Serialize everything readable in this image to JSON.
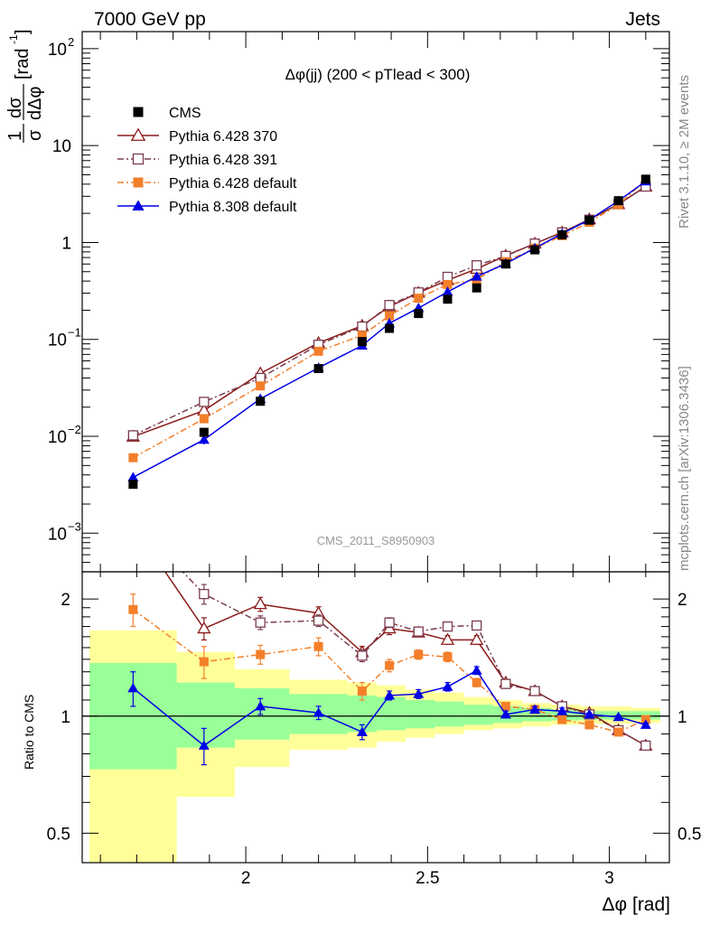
{
  "chart_data": {
    "type": "line",
    "header_left": "7000 GeV pp",
    "header_right": "Jets",
    "title": "Δφ(jj) (200 < pTlead <  300)",
    "watermark": "CMS_2011_S8950903",
    "side_text_top": "Rivet 3.1.10, ≥ 2M events",
    "side_text_bottom": "mcplots.cern.ch [arXiv:1306.3436]",
    "xlabel": "Δφ [rad]",
    "ylabel": "1/σ dσ/dΔφ [rad⁻¹]",
    "ylabel_parts": {
      "num": "1",
      "den": "σ",
      "dnum": "dσ",
      "dden": "dΔφ",
      "unit": "[rad",
      "unit_exp": "-1",
      "unit_close": "]"
    },
    "ratio_ylabel": "Ratio to CMS",
    "xlim": [
      1.55,
      3.165
    ],
    "ylim_main": [
      0.0004,
      150
    ],
    "ylim_ratio": [
      0.42,
      2.35
    ],
    "y_log": true,
    "x_ticks": [
      {
        "value": 2,
        "label": "2"
      },
      {
        "value": 2.5,
        "label": "2.5"
      },
      {
        "value": 3,
        "label": "3"
      }
    ],
    "main_ticks": [
      {
        "value": 0.001,
        "base": "10",
        "exp": "−3"
      },
      {
        "value": 0.01,
        "base": "10",
        "exp": "−2"
      },
      {
        "value": 0.1,
        "base": "10",
        "exp": "−1"
      },
      {
        "value": 1,
        "base": "1",
        "exp": ""
      },
      {
        "value": 10,
        "base": "10",
        "exp": ""
      },
      {
        "value": 100,
        "base": "10",
        "exp": "2"
      }
    ],
    "ratio_ticks": [
      {
        "value": 0.5,
        "label": "0.5"
      },
      {
        "value": 1,
        "label": "1"
      },
      {
        "value": 2,
        "label": "2"
      }
    ],
    "x": [
      1.69,
      1.885,
      2.04,
      2.2,
      2.32,
      2.395,
      2.475,
      2.555,
      2.635,
      2.715,
      2.795,
      2.87,
      2.945,
      3.025,
      3.1
    ],
    "cms": [
      0.0032,
      0.011,
      0.023,
      0.05,
      0.095,
      0.13,
      0.185,
      0.26,
      0.34,
      0.6,
      0.84,
      1.2,
      1.7,
      2.7,
      4.5
    ],
    "bands": [
      {
        "x0": 1.57,
        "x1": 1.81,
        "green": [
          0.73,
          1.37
        ],
        "yellow": [
          0.42,
          1.66
        ]
      },
      {
        "x0": 1.81,
        "x1": 1.97,
        "green": [
          0.83,
          1.22
        ],
        "yellow": [
          0.62,
          1.46
        ]
      },
      {
        "x0": 1.97,
        "x1": 2.12,
        "green": [
          0.87,
          1.18
        ],
        "yellow": [
          0.74,
          1.32
        ]
      },
      {
        "x0": 2.12,
        "x1": 2.28,
        "green": [
          0.9,
          1.14
        ],
        "yellow": [
          0.82,
          1.24
        ]
      },
      {
        "x0": 2.28,
        "x1": 2.36,
        "green": [
          0.91,
          1.13
        ],
        "yellow": [
          0.83,
          1.22
        ]
      },
      {
        "x0": 2.36,
        "x1": 2.44,
        "green": [
          0.92,
          1.12
        ],
        "yellow": [
          0.86,
          1.2
        ]
      },
      {
        "x0": 2.44,
        "x1": 2.52,
        "green": [
          0.93,
          1.1
        ],
        "yellow": [
          0.88,
          1.17
        ]
      },
      {
        "x0": 2.52,
        "x1": 2.6,
        "green": [
          0.94,
          1.09
        ],
        "yellow": [
          0.9,
          1.15
        ]
      },
      {
        "x0": 2.6,
        "x1": 2.68,
        "green": [
          0.95,
          1.07
        ],
        "yellow": [
          0.92,
          1.12
        ]
      },
      {
        "x0": 2.68,
        "x1": 2.76,
        "green": [
          0.96,
          1.06
        ],
        "yellow": [
          0.93,
          1.1
        ]
      },
      {
        "x0": 2.76,
        "x1": 2.84,
        "green": [
          0.97,
          1.05
        ],
        "yellow": [
          0.94,
          1.08
        ]
      },
      {
        "x0": 2.84,
        "x1": 2.92,
        "green": [
          0.975,
          1.04
        ],
        "yellow": [
          0.95,
          1.07
        ]
      },
      {
        "x0": 2.92,
        "x1": 3.06,
        "green": [
          0.98,
          1.03
        ],
        "yellow": [
          0.955,
          1.06
        ]
      },
      {
        "x0": 3.06,
        "x1": 3.14,
        "green": [
          0.98,
          1.03
        ],
        "yellow": [
          0.96,
          1.05
        ]
      }
    ],
    "series": [
      {
        "name": "Pythia 6.428 370",
        "color": "#8b1a1a",
        "marker": "triangle-open",
        "dash": "",
        "ratio": [
          3.1,
          1.68,
          1.94,
          1.84,
          1.46,
          1.68,
          1.64,
          1.57,
          1.57,
          1.22,
          1.16,
          1.06,
          1.02,
          0.92,
          0.84
        ],
        "err": [
          0,
          0.11,
          0.08,
          0.07,
          0.05,
          0.06,
          0.04,
          0.04,
          0.04,
          0.02,
          0.02,
          0.02,
          0.01,
          0.01,
          0.01
        ]
      },
      {
        "name": "Pythia 6.428 391",
        "color": "#7a3c4e",
        "marker": "square-open",
        "dash": "7,3,2,3",
        "ratio": [
          3.2,
          2.06,
          1.74,
          1.76,
          1.43,
          1.74,
          1.65,
          1.7,
          1.71,
          1.21,
          1.16,
          1.06,
          1.01,
          0.92,
          0.84
        ],
        "err": [
          0,
          0.12,
          0.07,
          0.06,
          0.05,
          0.05,
          0.04,
          0.04,
          0.04,
          0.02,
          0.02,
          0.02,
          0.01,
          0.01,
          0.01
        ]
      },
      {
        "name": "Pythia 6.428 default",
        "color": "#f47f2a",
        "marker": "square-filled",
        "dash": "7,3,2,3",
        "ratio": [
          1.88,
          1.38,
          1.44,
          1.51,
          1.16,
          1.35,
          1.44,
          1.42,
          1.22,
          1.06,
          1.04,
          0.98,
          0.95,
          0.91,
          0.98
        ],
        "err": [
          0.18,
          0.13,
          0.08,
          0.08,
          0.06,
          0.05,
          0.04,
          0.04,
          0.03,
          0.02,
          0.02,
          0.02,
          0.01,
          0.01,
          0.01
        ]
      },
      {
        "name": "Pythia 8.308 default",
        "color": "#0000e6",
        "marker": "triangle-filled",
        "dash": "",
        "ratio": [
          1.18,
          0.84,
          1.06,
          1.02,
          0.91,
          1.13,
          1.14,
          1.19,
          1.31,
          1.01,
          1.04,
          1.03,
          1.01,
          0.995,
          0.95
        ],
        "err": [
          0.12,
          0.09,
          0.05,
          0.04,
          0.04,
          0.03,
          0.03,
          0.03,
          0.03,
          0.02,
          0.02,
          0.02,
          0.01,
          0.01,
          0.01
        ]
      }
    ],
    "legend": [
      {
        "label": "CMS",
        "marker": "square-filled",
        "color": "#000000",
        "dash": ""
      },
      {
        "label": "Pythia 6.428 370",
        "marker": "triangle-open",
        "color": "#8b1a1a",
        "dash": ""
      },
      {
        "label": "Pythia 6.428 391",
        "marker": "square-open",
        "color": "#7a3c4e",
        "dash": "7,3,2,3"
      },
      {
        "label": "Pythia 6.428 default",
        "marker": "square-filled",
        "color": "#f47f2a",
        "dash": "7,3,2,3"
      },
      {
        "label": "Pythia 8.308 default",
        "marker": "triangle-filled",
        "color": "#0000e6",
        "dash": ""
      }
    ],
    "band_colors": {
      "green": "#99ff99",
      "yellow": "#ffff99"
    }
  }
}
